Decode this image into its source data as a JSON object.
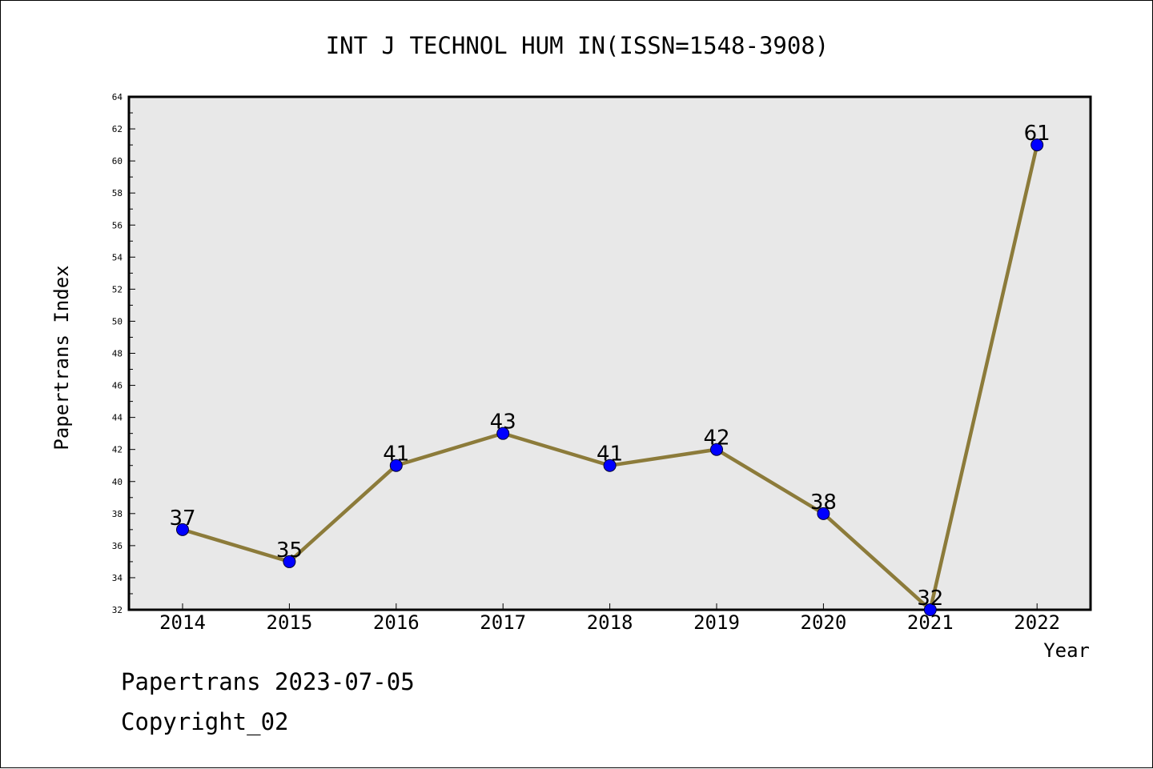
{
  "chart_data": {
    "type": "line",
    "title": "INT J TECHNOL HUM IN(ISSN=1548-3908)",
    "xlabel": "Year",
    "ylabel": "Papertrans Index",
    "categories": [
      "2014",
      "2015",
      "2016",
      "2017",
      "2018",
      "2019",
      "2020",
      "2021",
      "2022"
    ],
    "series": [
      {
        "values": [
          37,
          35,
          41,
          43,
          41,
          42,
          38,
          32,
          61
        ]
      }
    ],
    "data_labels": [
      "37",
      "35",
      "41",
      "43",
      "41",
      "42",
      "38",
      "32",
      "61"
    ],
    "ylim": [
      32,
      64
    ],
    "yticks": [
      "32",
      "34",
      "36",
      "38",
      "40",
      "42",
      "44",
      "46",
      "48",
      "50",
      "52",
      "54",
      "56",
      "58",
      "60",
      "62",
      "64"
    ],
    "grid": false,
    "legend": "none",
    "colors": {
      "line": "#8c7b3a",
      "marker": "#0000ff",
      "plot_background": "#e8e8e8"
    }
  },
  "footer": {
    "line1": "Papertrans 2023-07-05",
    "line2": "Copyright_02"
  }
}
